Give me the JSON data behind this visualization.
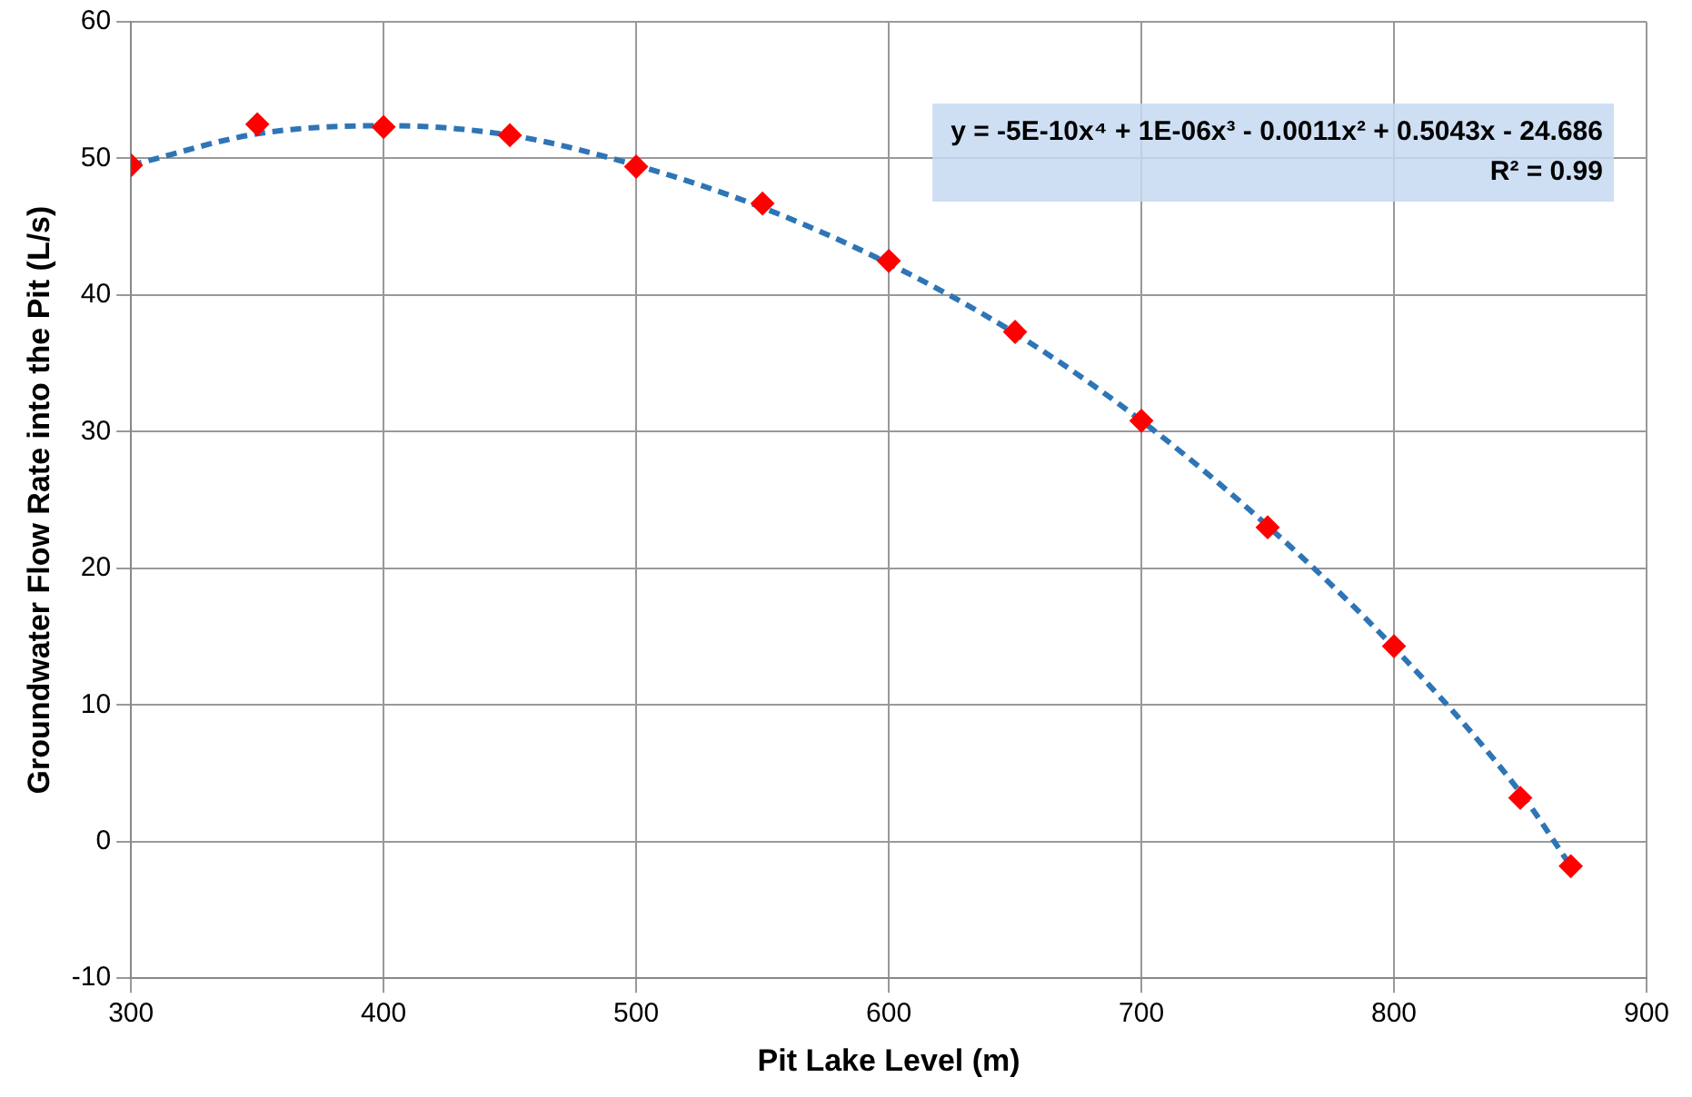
{
  "chart_data": {
    "type": "scatter",
    "xlabel": "Pit Lake Level (m)",
    "ylabel": "Groundwater Flow Rate into the Pit (L/s)",
    "xlim": [
      300,
      900
    ],
    "xticks": [
      300,
      400,
      500,
      600,
      700,
      800,
      900
    ],
    "ylim": [
      -10,
      60
    ],
    "yticks": [
      -10,
      0,
      10,
      20,
      30,
      40,
      50,
      60
    ],
    "grid": true,
    "marker": "diamond",
    "series": [
      {
        "type": "line",
        "color": "#2e75b6",
        "line_style": "dashed",
        "marker": "none",
        "x": [
          300,
          350,
          400,
          450,
          500,
          550,
          600,
          650,
          700,
          750,
          800,
          850,
          870
        ],
        "values": [
          49.5,
          51.8,
          52.4,
          51.7,
          49.5,
          46.4,
          42.3,
          37.2,
          30.8,
          23.1,
          14.2,
          3.6,
          -1.8
        ]
      },
      {
        "color": "#ff0000",
        "x": [
          300,
          350,
          400,
          450,
          500,
          550,
          600,
          650,
          700,
          750,
          800,
          850,
          870
        ],
        "values": [
          49.5,
          52.5,
          52.3,
          51.7,
          49.4,
          46.7,
          42.5,
          37.3,
          30.8,
          23.0,
          14.3,
          3.2,
          -1.8
        ]
      }
    ],
    "annotations": [
      "y = -5E-10x⁴ + 1E-06x³ - 0.0011x² + 0.5043x - 24.686",
      "R² = 0.99"
    ]
  }
}
